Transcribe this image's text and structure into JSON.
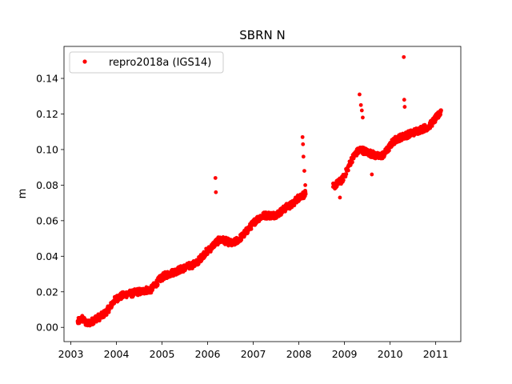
{
  "chart_data": {
    "type": "scatter",
    "title": "SBRN N",
    "xlabel": "",
    "ylabel": "m",
    "xlim": [
      2002.85,
      2011.55
    ],
    "ylim": [
      -0.008,
      0.158
    ],
    "xticks": [
      2003,
      2004,
      2005,
      2006,
      2007,
      2008,
      2009,
      2010,
      2011
    ],
    "xtick_labels": [
      "2003",
      "2004",
      "2005",
      "2006",
      "2007",
      "2008",
      "2009",
      "2010",
      "2011"
    ],
    "yticks": [
      0.0,
      0.02,
      0.04,
      0.06,
      0.08,
      0.1,
      0.12,
      0.14
    ],
    "ytick_labels": [
      "0.00",
      "0.02",
      "0.04",
      "0.06",
      "0.08",
      "0.10",
      "0.12",
      "0.14"
    ],
    "grid": false,
    "legend": {
      "placement": "top-left",
      "entries": [
        "repro2018a (IGS14)"
      ]
    },
    "series": [
      {
        "name": "repro2018a (IGS14)",
        "color": "#ff0000",
        "marker": "circle",
        "x": [
          2003.15,
          2003.25,
          2003.35,
          2003.45,
          2003.55,
          2003.65,
          2003.75,
          2003.85,
          2003.95,
          2004.05,
          2004.15,
          2004.25,
          2004.35,
          2004.45,
          2004.55,
          2004.65,
          2004.75,
          2004.85,
          2004.95,
          2005.05,
          2005.15,
          2005.25,
          2005.35,
          2005.45,
          2005.55,
          2005.65,
          2005.75,
          2005.85,
          2005.95,
          2006.05,
          2006.15,
          2006.25,
          2006.35,
          2006.45,
          2006.55,
          2006.65,
          2006.75,
          2006.85,
          2006.95,
          2007.05,
          2007.15,
          2007.25,
          2007.35,
          2007.45,
          2007.55,
          2007.65,
          2007.75,
          2007.85,
          2007.95,
          2008.05,
          2008.15,
          2008.75,
          2008.85,
          2008.95,
          2009.05,
          2009.15,
          2009.25,
          2009.35,
          2009.45,
          2009.55,
          2009.65,
          2009.75,
          2009.85,
          2009.95,
          2010.05,
          2010.15,
          2010.25,
          2010.35,
          2010.45,
          2010.55,
          2010.65,
          2010.75,
          2010.85,
          2010.95,
          2011.05,
          2011.12,
          2006.17,
          2006.18,
          2008.08,
          2008.09,
          2008.1,
          2008.12,
          2008.14,
          2009.33,
          2009.36,
          2009.4,
          2009.38,
          2009.6,
          2010.3,
          2010.31,
          2010.32,
          2008.9
        ],
        "y": [
          0.003,
          0.005,
          0.002,
          0.003,
          0.005,
          0.006,
          0.008,
          0.011,
          0.015,
          0.017,
          0.018,
          0.019,
          0.019,
          0.02,
          0.02,
          0.021,
          0.021,
          0.024,
          0.027,
          0.029,
          0.03,
          0.031,
          0.032,
          0.033,
          0.034,
          0.035,
          0.036,
          0.039,
          0.042,
          0.044,
          0.047,
          0.049,
          0.049,
          0.048,
          0.047,
          0.049,
          0.051,
          0.054,
          0.057,
          0.06,
          0.062,
          0.063,
          0.063,
          0.063,
          0.064,
          0.066,
          0.068,
          0.069,
          0.072,
          0.074,
          0.075,
          0.079,
          0.081,
          0.083,
          0.088,
          0.094,
          0.098,
          0.1,
          0.099,
          0.098,
          0.097,
          0.096,
          0.097,
          0.1,
          0.104,
          0.106,
          0.107,
          0.108,
          0.109,
          0.11,
          0.111,
          0.112,
          0.113,
          0.116,
          0.119,
          0.122,
          0.084,
          0.076,
          0.107,
          0.103,
          0.096,
          0.088,
          0.08,
          0.131,
          0.125,
          0.118,
          0.122,
          0.086,
          0.152,
          0.128,
          0.124,
          0.073
        ]
      }
    ]
  }
}
